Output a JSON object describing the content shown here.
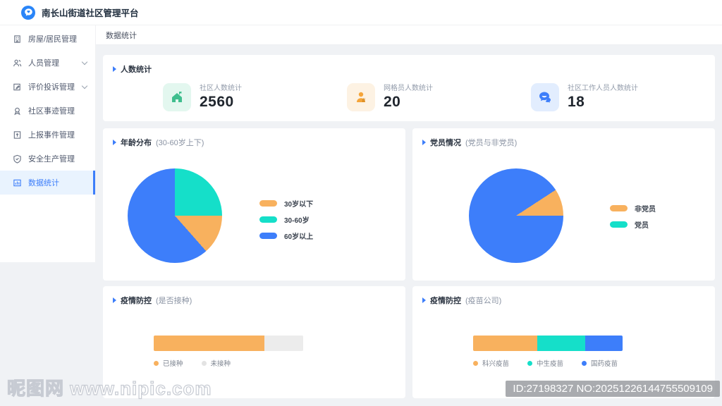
{
  "header": {
    "title": "南长山街道社区管理平台"
  },
  "sidebar": {
    "items": [
      {
        "label": "房屋/居民管理",
        "expandable": false,
        "active": false
      },
      {
        "label": "人员管理",
        "expandable": true,
        "active": false
      },
      {
        "label": "评价投诉管理",
        "expandable": true,
        "active": false
      },
      {
        "label": "社区事迹管理",
        "expandable": false,
        "active": false
      },
      {
        "label": "上报事件管理",
        "expandable": false,
        "active": false
      },
      {
        "label": "安全生产管理",
        "expandable": false,
        "active": false
      },
      {
        "label": "数据统计",
        "expandable": false,
        "active": true
      }
    ]
  },
  "tabs": {
    "label": "数据统计"
  },
  "stats_section": {
    "title": "人数统计",
    "cards": [
      {
        "label": "社区人数统计",
        "value": "2560",
        "icon": "home-icon",
        "color": "#3fbe8e"
      },
      {
        "label": "网格员人数统计",
        "value": "20",
        "icon": "grid-worker-icon",
        "color": "#f5a53a"
      },
      {
        "label": "社区工作人员人数统计",
        "value": "18",
        "icon": "chat-icon",
        "color": "#3d7efa"
      }
    ]
  },
  "chart_data": [
    {
      "type": "pie",
      "title": "年龄分布",
      "subtitle": "(30-60岁上下)",
      "start_deg": 0,
      "slices": [
        {
          "label": "30-60岁",
          "pct": 25,
          "color": "#15dfc9"
        },
        {
          "label": "30岁以下",
          "pct": 13.5,
          "color": "#f8b15e"
        },
        {
          "label": "60岁以上",
          "pct": 61.5,
          "color": "#3d7efa"
        }
      ],
      "legend": [
        {
          "label": "30岁以下",
          "color": "#f8b15e"
        },
        {
          "label": "30-60岁",
          "color": "#15dfc9"
        },
        {
          "label": "60岁以上",
          "color": "#3d7efa"
        }
      ],
      "legend_position": "right"
    },
    {
      "type": "pie",
      "title": "党员情况",
      "subtitle": "(党员与非党员)",
      "start_deg": 90,
      "slices": [
        {
          "label": "党员",
          "pct": 90.8,
          "color": "#3d7efa"
        },
        {
          "label": "非党员",
          "pct": 9.2,
          "color": "#f8b15e"
        }
      ],
      "legend": [
        {
          "label": "非党员",
          "color": "#f8b15e"
        },
        {
          "label": "党员",
          "color": "#15dfc9"
        }
      ],
      "legend_position": "right"
    },
    {
      "type": "bar",
      "title": "疫情防控",
      "subtitle": "(是否接种)",
      "orientation": "horizontal-stacked",
      "segments": [
        {
          "label": "已接种",
          "pct": 74,
          "color": "#f8b15e"
        },
        {
          "label": "未接种",
          "pct": 26,
          "color": "#ececec"
        }
      ],
      "legend": [
        {
          "label": "已接种",
          "color": "#f8b15e"
        },
        {
          "label": "未接种",
          "color": "#e3e3e3"
        }
      ]
    },
    {
      "type": "bar",
      "title": "疫情防控",
      "subtitle": "(疫苗公司)",
      "orientation": "horizontal-stacked",
      "segments": [
        {
          "label": "科兴疫苗",
          "pct": 43,
          "color": "#f8b15e"
        },
        {
          "label": "中生疫苗",
          "pct": 32,
          "color": "#15dfc9"
        },
        {
          "label": "国药疫苗",
          "pct": 25,
          "color": "#3d7efa"
        }
      ],
      "legend": [
        {
          "label": "科兴疫苗",
          "color": "#f8b15e"
        },
        {
          "label": "中生疫苗",
          "color": "#15dfc9"
        },
        {
          "label": "国药疫苗",
          "color": "#3d7efa"
        }
      ]
    }
  ],
  "watermark": {
    "site": "昵图网 www.nipic.com",
    "id_text": "ID:27198327 NO:20251226144755509109"
  }
}
